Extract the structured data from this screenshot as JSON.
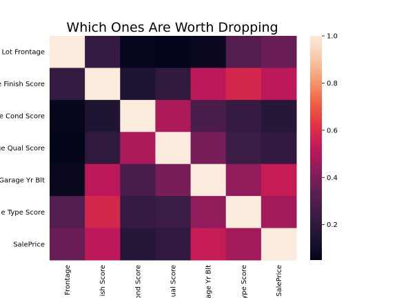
{
  "chart_data": {
    "type": "heatmap",
    "title": "Which Ones Are Worth Dropping",
    "row_labels": [
      "Lot Frontage",
      "e Finish Score",
      "e Cond Score",
      "ge Qual Score",
      "Garage Yr Blt",
      "e Type Score",
      "SalePrice"
    ],
    "col_labels": [
      "Frontage",
      "ish Score",
      "ond Score",
      "ual Score",
      "age Yr Blt",
      "ype Score",
      "SalePrice"
    ],
    "values": [
      [
        1.0,
        0.22,
        0.06,
        0.05,
        0.07,
        0.31,
        0.36
      ],
      [
        0.22,
        1.0,
        0.15,
        0.2,
        0.52,
        0.58,
        0.52
      ],
      [
        0.06,
        0.15,
        1.0,
        0.49,
        0.28,
        0.22,
        0.17
      ],
      [
        0.05,
        0.2,
        0.49,
        1.0,
        0.39,
        0.24,
        0.21
      ],
      [
        0.07,
        0.52,
        0.28,
        0.39,
        1.0,
        0.44,
        0.54
      ],
      [
        0.31,
        0.58,
        0.22,
        0.24,
        0.44,
        1.0,
        0.47
      ],
      [
        0.36,
        0.52,
        0.17,
        0.21,
        0.54,
        0.47,
        1.0
      ]
    ],
    "colorbar": {
      "ticks": [
        0.2,
        0.4,
        0.6,
        0.8,
        1.0
      ],
      "tick_labels": [
        "0.2",
        "0.4",
        "0.6",
        "0.8",
        "1.0"
      ],
      "range": [
        0.05,
        1.0
      ],
      "colormap": "rocket"
    },
    "grid": false
  }
}
